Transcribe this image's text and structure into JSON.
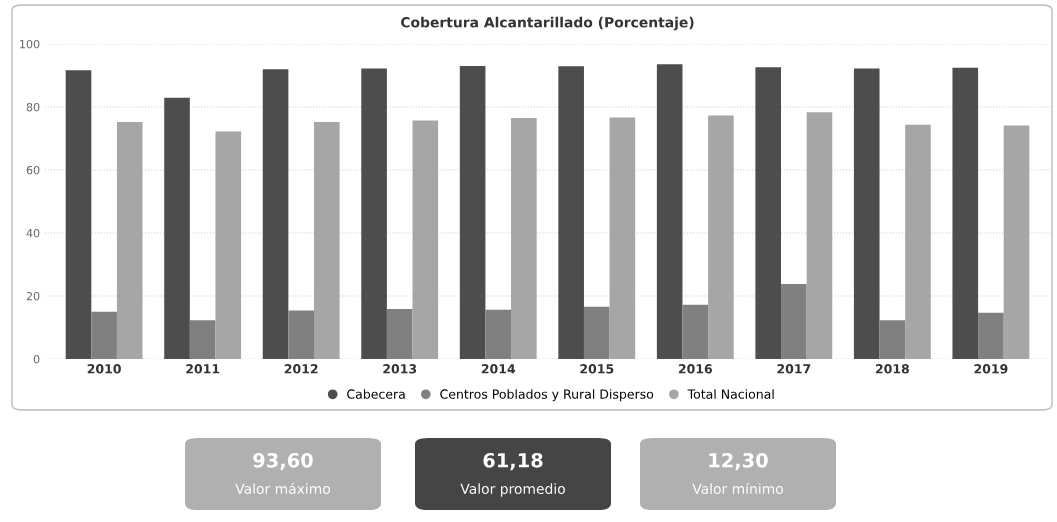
{
  "chart_data": [
    {
      "type": "bar",
      "title": "Cobertura Alcantarillado (Porcentaje)",
      "categories": [
        "2010",
        "2011",
        "2012",
        "2013",
        "2014",
        "2015",
        "2016",
        "2017",
        "2018",
        "2019"
      ],
      "series": [
        {
          "name": "Cabecera",
          "color": "#4d4d4d",
          "values": [
            91.7,
            82.9,
            92.0,
            92.2,
            93.0,
            92.9,
            93.6,
            92.6,
            92.2,
            92.5
          ]
        },
        {
          "name": "Centros Poblados y Rural Disperso",
          "color": "#808080",
          "values": [
            15.0,
            12.3,
            15.4,
            15.9,
            15.6,
            16.6,
            17.2,
            23.8,
            12.3,
            14.7
          ]
        },
        {
          "name": "Total Nacional",
          "color": "#a6a6a6",
          "values": [
            75.2,
            72.2,
            75.2,
            75.7,
            76.5,
            76.7,
            77.3,
            78.3,
            74.4,
            74.1
          ]
        }
      ],
      "ylim": [
        0,
        100
      ],
      "yticks": [
        0,
        20,
        40,
        60,
        80,
        100
      ],
      "grid": "y",
      "legend": "bottom",
      "marker": "circle"
    },
    {
      "type": "other",
      "annotations": [
        "93,60",
        "Valor máximo",
        "61,18",
        "Valor promedio",
        "12,30",
        "Valor mínimo"
      ],
      "colors": [
        "#b0b0b0",
        "#454545",
        "#b0b0b0"
      ]
    }
  ]
}
